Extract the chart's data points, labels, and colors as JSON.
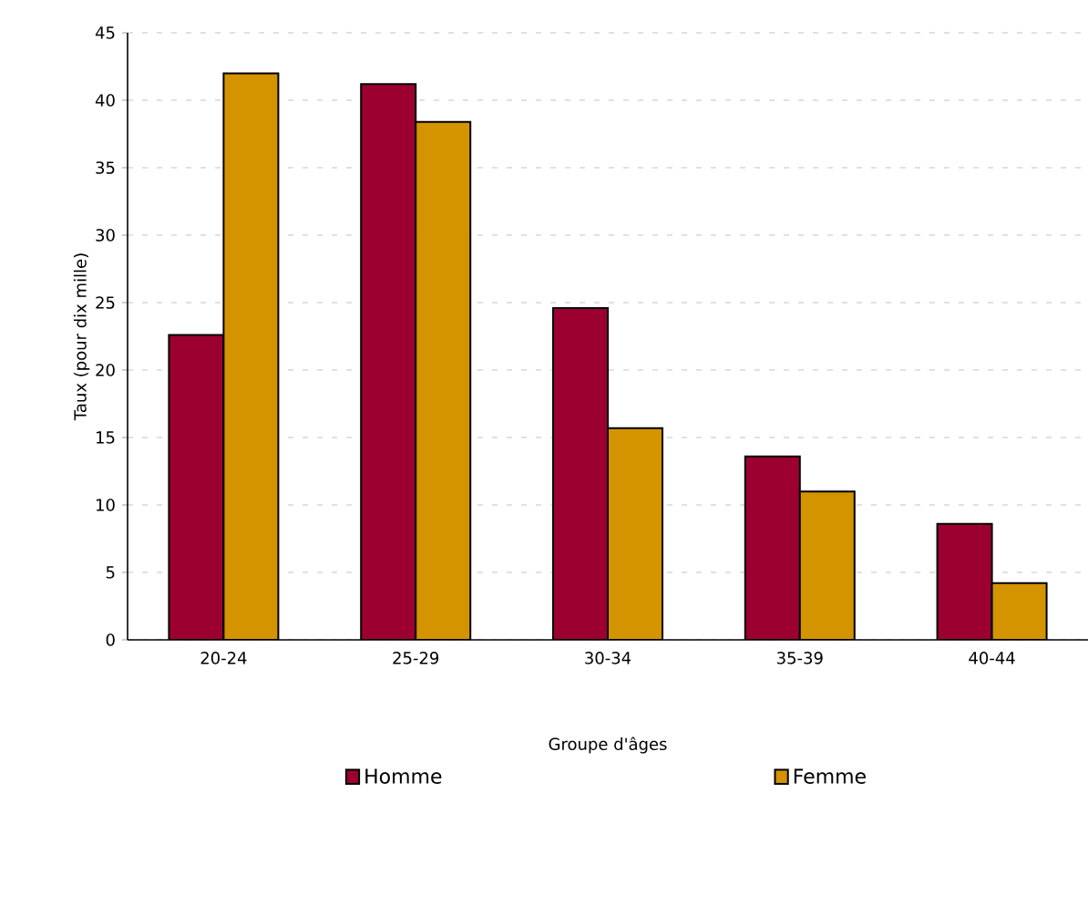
{
  "chart_data": {
    "type": "bar",
    "xlabel": "Groupe d'âges",
    "ylabel": "Taux (pour dix mille)",
    "categories": [
      "20-24",
      "25-29",
      "30-34",
      "35-39",
      "40-44"
    ],
    "series": [
      {
        "name": "Homme",
        "color": "#9b0030",
        "values": [
          22.6,
          41.2,
          24.6,
          13.6,
          8.6
        ]
      },
      {
        "name": "Femme",
        "color": "#d39400",
        "values": [
          42.0,
          38.4,
          15.7,
          11.0,
          4.2
        ]
      }
    ],
    "ylim": [
      0,
      45
    ],
    "yticks": [
      0,
      5,
      10,
      15,
      20,
      25,
      30,
      35,
      40,
      45
    ],
    "grid": "y",
    "legend": "bottom"
  }
}
